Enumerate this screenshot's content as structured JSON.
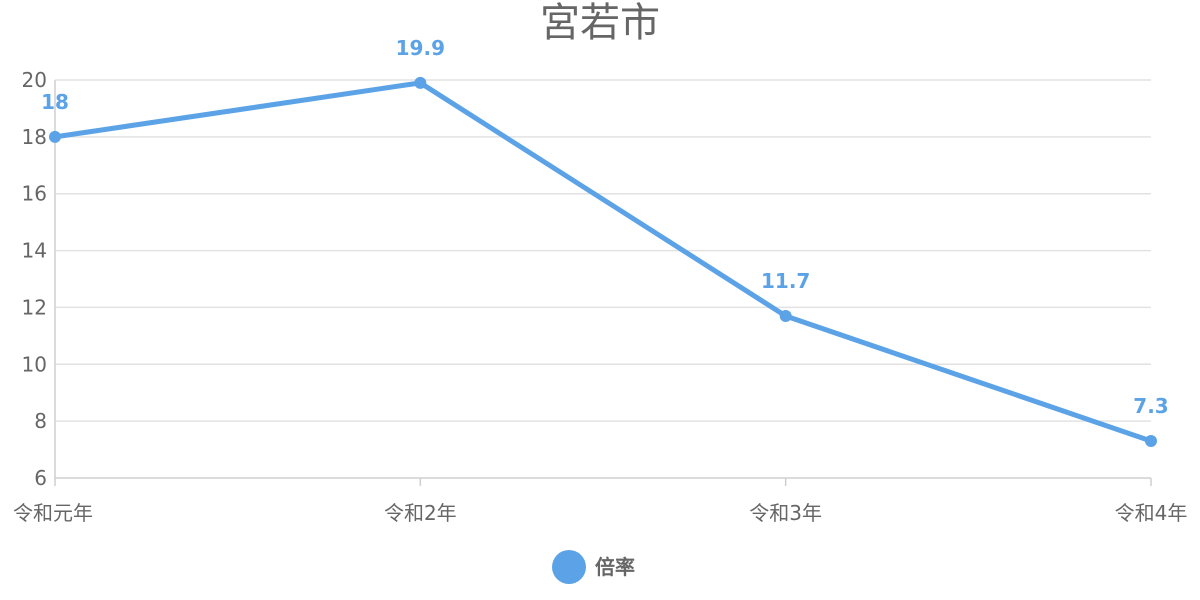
{
  "chart_data": {
    "type": "line",
    "title": "宮若市",
    "categories": [
      "令和元年",
      "令和2年",
      "令和3年",
      "令和4年"
    ],
    "series": [
      {
        "name": "倍率",
        "values": [
          18,
          19.9,
          11.7,
          7.3
        ],
        "color": "#5ba3e6"
      }
    ],
    "data_labels": [
      "18",
      "19.9",
      "11.7",
      "7.3"
    ],
    "ylim": [
      6,
      20
    ],
    "y_ticks": [
      6,
      8,
      10,
      12,
      14,
      16,
      18,
      20
    ],
    "grid": true,
    "legend": "bottom-center",
    "text_color": "#666666",
    "grid_color": "#e2e2e2"
  }
}
